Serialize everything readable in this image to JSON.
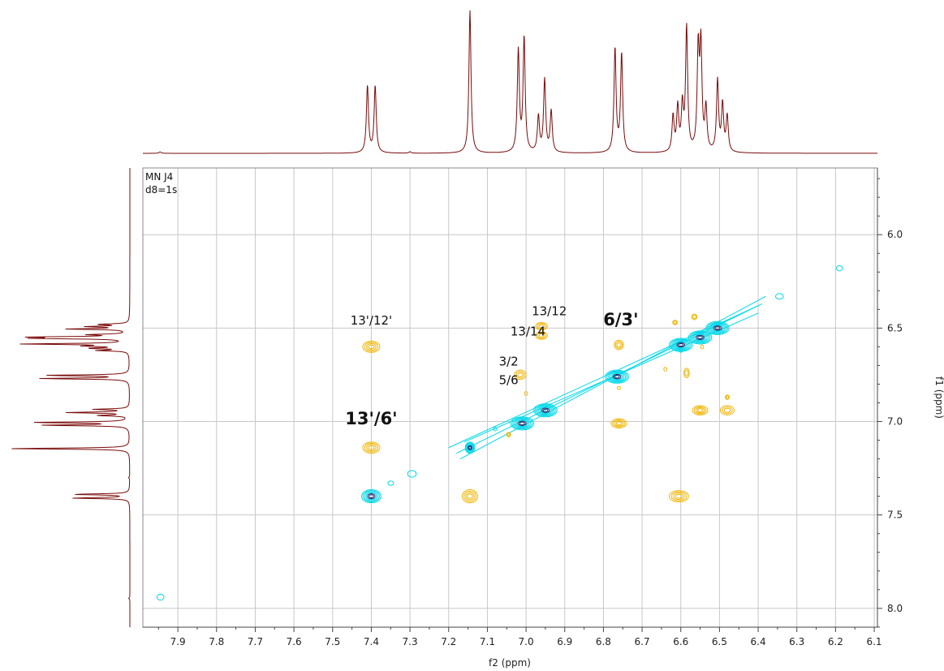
{
  "chart_data": {
    "type": "heatmap",
    "title": "",
    "xlabel": "f2 (ppm)",
    "ylabel": "f1 (ppm)",
    "xlim": [
      7.9905,
      6.0917
    ],
    "ylim": [
      5.6429,
      8.1008
    ],
    "x_ticks": [
      "7.9",
      "7.8",
      "7.7",
      "7.6",
      "7.5",
      "7.4",
      "7.3",
      "7.2",
      "7.1",
      "7.0",
      "6.9",
      "6.8",
      "6.7",
      "6.6",
      "6.5",
      "6.4",
      "6.3",
      "6.2",
      "6.1"
    ],
    "y_ticks": [
      "6.0",
      "6.5",
      "7.0",
      "7.5",
      "8.0"
    ],
    "grid": true,
    "corner_text": [
      "MN J4",
      "d8=1s"
    ],
    "colors": {
      "positive": "#00d8e8",
      "positive_core": "#1c2a70",
      "negative": "#f0b400",
      "projection": "#7a0a0a",
      "grid": "#c8c8c8"
    },
    "projection_peaks": [
      {
        "ppm": 7.946,
        "h": 0.01
      },
      {
        "ppm": 7.41,
        "h": 0.47
      },
      {
        "ppm": 7.39,
        "h": 0.47
      },
      {
        "ppm": 7.3,
        "h": 0.01
      },
      {
        "ppm": 7.145,
        "h": 1.0
      },
      {
        "ppm": 7.02,
        "h": 0.71
      },
      {
        "ppm": 7.005,
        "h": 0.8
      },
      {
        "ppm": 6.968,
        "h": 0.25
      },
      {
        "ppm": 6.952,
        "h": 0.51
      },
      {
        "ppm": 6.935,
        "h": 0.29
      },
      {
        "ppm": 6.77,
        "h": 0.73
      },
      {
        "ppm": 6.753,
        "h": 0.69
      },
      {
        "ppm": 6.62,
        "h": 0.25
      },
      {
        "ppm": 6.608,
        "h": 0.31
      },
      {
        "ppm": 6.596,
        "h": 0.31
      },
      {
        "ppm": 6.585,
        "h": 0.87
      },
      {
        "ppm": 6.555,
        "h": 0.7
      },
      {
        "ppm": 6.548,
        "h": 0.72
      },
      {
        "ppm": 6.535,
        "h": 0.3
      },
      {
        "ppm": 6.505,
        "h": 0.5
      },
      {
        "ppm": 6.492,
        "h": 0.33
      },
      {
        "ppm": 6.48,
        "h": 0.25
      }
    ],
    "diagonal_peaks": [
      {
        "x": 7.4,
        "y": 7.4,
        "rx": 0.025,
        "ry": 0.035,
        "n": 6
      },
      {
        "x": 7.145,
        "y": 7.14,
        "rx": 0.012,
        "ry": 0.03,
        "n": 6
      },
      {
        "x": 7.01,
        "y": 7.01,
        "rx": 0.03,
        "ry": 0.035,
        "n": 7
      },
      {
        "x": 6.95,
        "y": 6.94,
        "rx": 0.03,
        "ry": 0.035,
        "n": 7
      },
      {
        "x": 6.765,
        "y": 6.76,
        "rx": 0.03,
        "ry": 0.035,
        "n": 7
      },
      {
        "x": 6.6,
        "y": 6.59,
        "rx": 0.03,
        "ry": 0.035,
        "n": 7
      },
      {
        "x": 6.55,
        "y": 6.55,
        "rx": 0.03,
        "ry": 0.035,
        "n": 7
      },
      {
        "x": 6.505,
        "y": 6.5,
        "rx": 0.03,
        "ry": 0.035,
        "n": 7
      }
    ],
    "positive_extra": [
      {
        "x": 7.35,
        "y": 7.33,
        "rx": 0.007,
        "ry": 0.012
      },
      {
        "x": 7.295,
        "y": 7.28,
        "rx": 0.011,
        "ry": 0.018
      },
      {
        "x": 7.945,
        "y": 7.94,
        "rx": 0.009,
        "ry": 0.016
      },
      {
        "x": 6.19,
        "y": 6.18,
        "rx": 0.008,
        "ry": 0.014
      },
      {
        "x": 6.345,
        "y": 6.33,
        "rx": 0.01,
        "ry": 0.015
      },
      {
        "x": 7.08,
        "y": 7.04,
        "rx": 0.004,
        "ry": 0.01
      },
      {
        "x": 6.6,
        "y": 6.62,
        "rx": 0.004,
        "ry": 0.01
      }
    ],
    "negative_peaks": [
      {
        "x": 7.4,
        "y": 6.6,
        "rx": 0.022,
        "ry": 0.03,
        "n": 4
      },
      {
        "x": 7.4,
        "y": 7.14,
        "rx": 0.022,
        "ry": 0.03,
        "n": 4
      },
      {
        "x": 7.145,
        "y": 7.4,
        "rx": 0.02,
        "ry": 0.035,
        "n": 4
      },
      {
        "x": 6.605,
        "y": 7.4,
        "rx": 0.025,
        "ry": 0.03,
        "n": 4
      },
      {
        "x": 6.96,
        "y": 6.49,
        "rx": 0.015,
        "ry": 0.02,
        "n": 3
      },
      {
        "x": 6.96,
        "y": 6.54,
        "rx": 0.015,
        "ry": 0.02,
        "n": 3
      },
      {
        "x": 7.015,
        "y": 6.75,
        "rx": 0.015,
        "ry": 0.025,
        "n": 3
      },
      {
        "x": 6.76,
        "y": 6.59,
        "rx": 0.012,
        "ry": 0.025,
        "n": 3
      },
      {
        "x": 6.76,
        "y": 7.01,
        "rx": 0.02,
        "ry": 0.025,
        "n": 4
      },
      {
        "x": 6.55,
        "y": 6.94,
        "rx": 0.02,
        "ry": 0.025,
        "n": 4
      },
      {
        "x": 6.48,
        "y": 6.94,
        "rx": 0.018,
        "ry": 0.025,
        "n": 3
      },
      {
        "x": 6.585,
        "y": 6.74,
        "rx": 0.007,
        "ry": 0.025,
        "n": 2
      },
      {
        "x": 6.565,
        "y": 6.44,
        "rx": 0.007,
        "ry": 0.015,
        "n": 2
      },
      {
        "x": 6.615,
        "y": 6.47,
        "rx": 0.006,
        "ry": 0.012,
        "n": 2
      },
      {
        "x": 6.48,
        "y": 6.87,
        "rx": 0.005,
        "ry": 0.012,
        "n": 2
      },
      {
        "x": 7.045,
        "y": 7.07,
        "rx": 0.005,
        "ry": 0.012,
        "n": 2
      },
      {
        "x": 7.0,
        "y": 6.85,
        "rx": 0.004,
        "ry": 0.01,
        "n": 1
      },
      {
        "x": 6.76,
        "y": 6.82,
        "rx": 0.004,
        "ry": 0.008,
        "n": 1
      },
      {
        "x": 6.64,
        "y": 6.72,
        "rx": 0.004,
        "ry": 0.01,
        "n": 1
      },
      {
        "x": 6.545,
        "y": 6.6,
        "rx": 0.004,
        "ry": 0.01,
        "n": 1
      }
    ],
    "annotations": [
      {
        "text": "13'/12'",
        "x": 7.4,
        "y": 6.48,
        "bold": false
      },
      {
        "text": "13/12",
        "x": 6.94,
        "y": 6.43,
        "bold": false
      },
      {
        "text": "13/14",
        "x": 6.995,
        "y": 6.54,
        "bold": false
      },
      {
        "text": "6/3'",
        "x": 6.755,
        "y": 6.485,
        "bold": true
      },
      {
        "text": "3/2",
        "x": 7.045,
        "y": 6.7,
        "bold": false
      },
      {
        "text": "5/6",
        "x": 7.045,
        "y": 6.8,
        "bold": false
      },
      {
        "text": "13'/6'",
        "x": 7.4,
        "y": 7.015,
        "bold": true
      }
    ]
  }
}
